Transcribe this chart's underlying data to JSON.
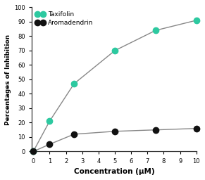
{
  "taxifolin_x": [
    0,
    1,
    2.5,
    5,
    7.5,
    10
  ],
  "taxifolin_y": [
    0,
    21,
    47,
    70,
    84,
    91
  ],
  "aromadendrin_x": [
    0,
    1,
    2.5,
    5,
    7.5,
    10
  ],
  "aromadendrin_y": [
    0,
    5,
    12,
    14,
    15,
    16
  ],
  "taxifolin_color": "#2DC9A0",
  "aromadendrin_color": "#111111",
  "line_color": "#888888",
  "xlabel": "Concentration (μM)",
  "ylabel": "Percentages of Inhibition",
  "xlim": [
    -0.1,
    10
  ],
  "ylim": [
    0,
    100
  ],
  "xticks": [
    0,
    1,
    2,
    3,
    4,
    5,
    6,
    7,
    8,
    9,
    10
  ],
  "yticks": [
    0,
    10,
    20,
    30,
    40,
    50,
    60,
    70,
    80,
    90,
    100
  ],
  "legend_taxifolin": "Taxifolin",
  "legend_aromadendrin": "Aromadendrin",
  "marker_size": 6,
  "linewidth": 1.0,
  "bg_color": "#ffffff"
}
